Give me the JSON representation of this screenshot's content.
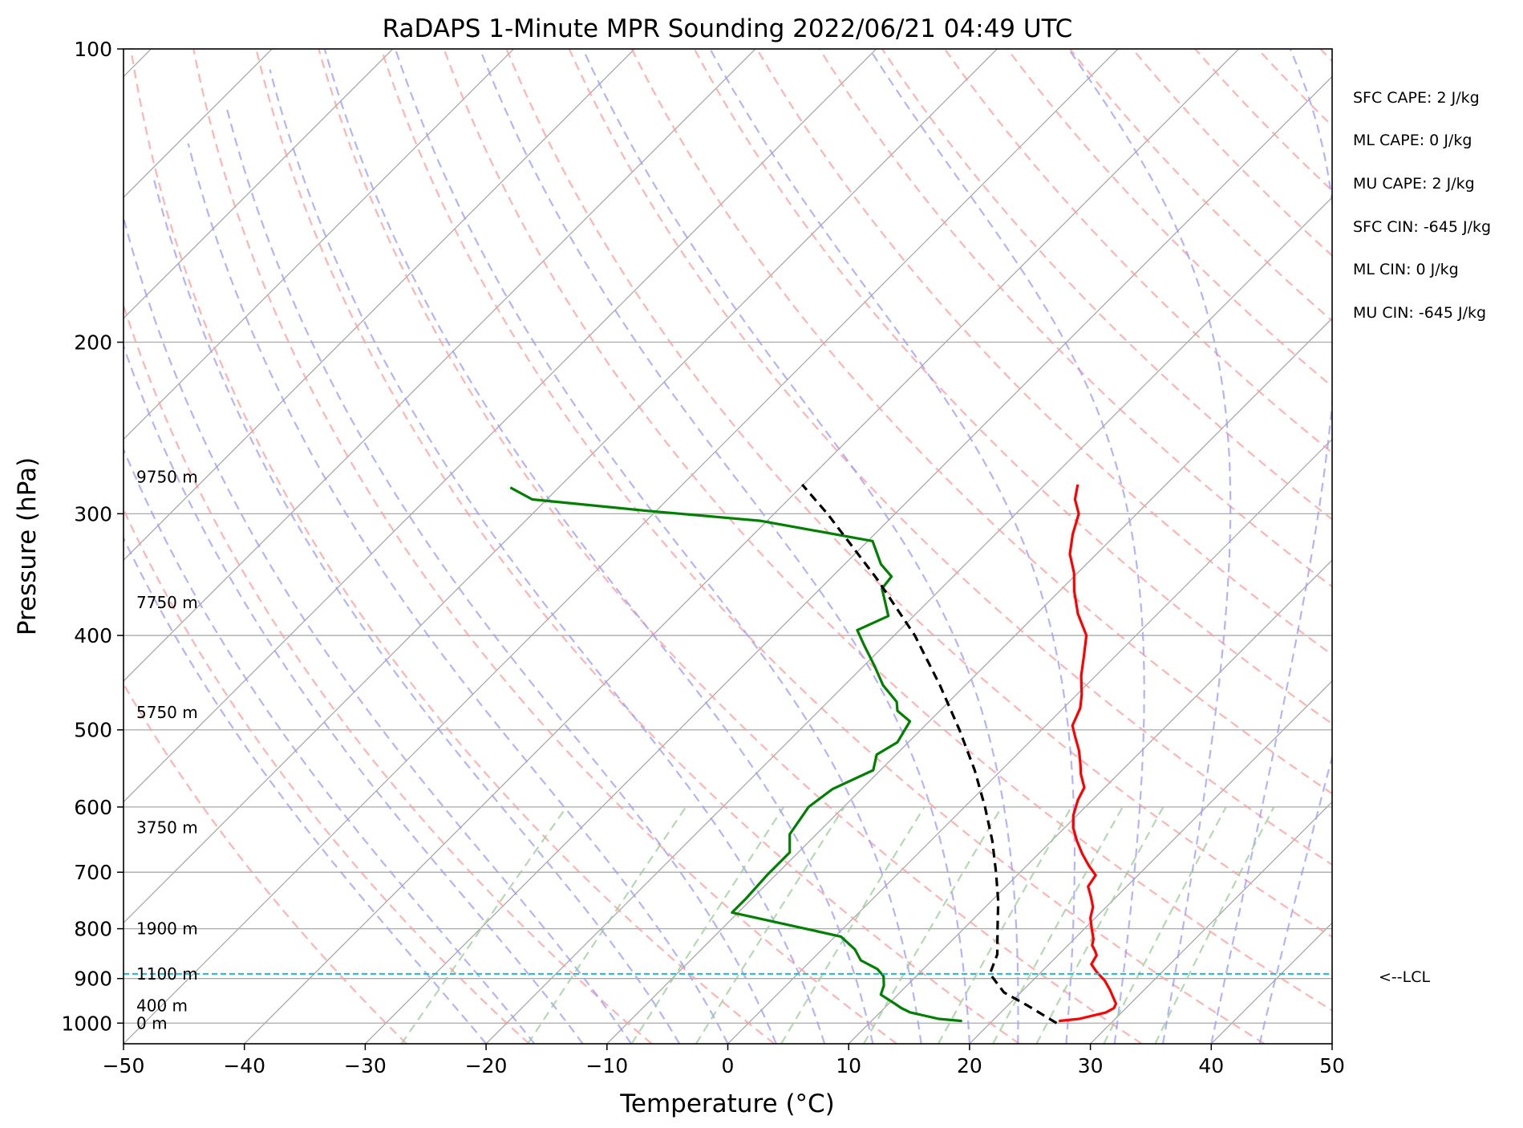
{
  "chart_data": {
    "type": "line",
    "title": "RaDAPS 1-Minute MPR Sounding 2022/06/21 04:49 UTC",
    "xlabel": "Temperature (°C)",
    "ylabel": "Pressure (hPa)",
    "xlim": [
      -50,
      50
    ],
    "ylim": [
      1050,
      100
    ],
    "y_scale": "log",
    "skew": true,
    "x_ticks": [
      -50,
      -40,
      -30,
      -20,
      -10,
      0,
      10,
      20,
      30,
      40,
      50
    ],
    "x_tick_labels": [
      "−50",
      "−40",
      "−30",
      "−20",
      "−10",
      "0",
      "10",
      "20",
      "30",
      "40",
      "50"
    ],
    "y_ticks": [
      100,
      200,
      300,
      400,
      500,
      600,
      700,
      800,
      900,
      1000
    ],
    "y_tick_labels": [
      "100",
      "200",
      "300",
      "400",
      "500",
      "600",
      "700",
      "800",
      "900",
      "1000"
    ],
    "grid": true,
    "colors": {
      "temperature": "#ff0000",
      "dewpoint": "#008000",
      "parcel": "#000000",
      "lcl": "#17becf",
      "isotherm": "#aaaaaa",
      "dry_adiabat": "#ff9999",
      "moist_adiabat": "#9999ff",
      "mixing_ratio": "#99cc99"
    },
    "series": [
      {
        "role": "temperature",
        "p": [
          995,
          990,
          975,
          965,
          955,
          940,
          925,
          905,
          885,
          870,
          852,
          843,
          832,
          820,
          800,
          780,
          760,
          742,
          724,
          705,
          690,
          670,
          650,
          630,
          612,
          590,
          573,
          555,
          543,
          525,
          510,
          495,
          475,
          460,
          440,
          420,
          400,
          380,
          360,
          345,
          330,
          315,
          300,
          290,
          280
        ],
        "t": [
          25.5,
          27,
          28.7,
          29,
          28.8,
          28,
          27.2,
          26,
          24.5,
          23.5,
          23.2,
          22.7,
          22,
          21.6,
          20.6,
          19.6,
          18.9,
          17.9,
          16.8,
          16.5,
          15.2,
          13.6,
          12.1,
          10.7,
          9.7,
          8.8,
          8.3,
          6.9,
          6.1,
          4.8,
          3.5,
          2.2,
          1.4,
          0.4,
          -1.2,
          -2.6,
          -4.1,
          -6.6,
          -8.8,
          -10.3,
          -12.2,
          -13.6,
          -14.8,
          -16.3,
          -17.3
        ]
      },
      {
        "role": "dewpoint",
        "p": [
          995,
          990,
          975,
          965,
          955,
          935,
          915,
          895,
          880,
          862,
          840,
          815,
          795,
          770,
          745,
          705,
          668,
          640,
          600,
          575,
          550,
          530,
          515,
          490,
          478,
          468,
          450,
          430,
          410,
          395,
          382,
          358,
          348,
          338,
          320,
          305,
          298,
          290,
          282
        ],
        "t": [
          17.5,
          15.4,
          12.5,
          11.4,
          10.5,
          8.6,
          8.1,
          7.3,
          6.2,
          4.1,
          2.7,
          0.5,
          -4.3,
          -10.5,
          -10.5,
          -10.7,
          -10.7,
          -12.2,
          -12.9,
          -12.4,
          -10.6,
          -11.6,
          -10.9,
          -11.6,
          -13.5,
          -14.3,
          -16.8,
          -19.1,
          -21.6,
          -23.5,
          -22.1,
          -24.9,
          -25.1,
          -27.0,
          -29.6,
          -40.6,
          -50.7,
          -61.2,
          -64.0
        ]
      },
      {
        "role": "parcel",
        "p": [
          1000,
          960,
          930,
          890,
          850,
          800,
          750,
          700,
          650,
          600,
          550,
          500,
          450,
          400,
          350,
          300,
          280
        ],
        "t": [
          25.5,
          21.7,
          18.6,
          15.9,
          14.9,
          12.8,
          10.6,
          8,
          5.1,
          1.7,
          -2.2,
          -6.8,
          -12.1,
          -18.3,
          -26.1,
          -35.6,
          -40.1
        ]
      }
    ],
    "lcl": {
      "pressure": 890,
      "label": "<--LCL"
    },
    "height_labels": [
      {
        "p": 1000,
        "label": "0 m"
      },
      {
        "p": 960,
        "label": "400 m"
      },
      {
        "p": 890,
        "label": "1100 m"
      },
      {
        "p": 800,
        "label": "1900 m"
      },
      {
        "p": 630,
        "label": "3750 m"
      },
      {
        "p": 480,
        "label": "5750 m"
      },
      {
        "p": 370,
        "label": "7750 m"
      },
      {
        "p": 275,
        "label": "9750 m"
      }
    ],
    "indices": [
      "SFC CAPE: 2 J/kg",
      "ML CAPE: 0 J/kg",
      "MU CAPE: 2 J/kg",
      "SFC CIN: -645 J/kg",
      "ML CIN: 0 J/kg",
      "MU CIN: -645 J/kg"
    ]
  }
}
